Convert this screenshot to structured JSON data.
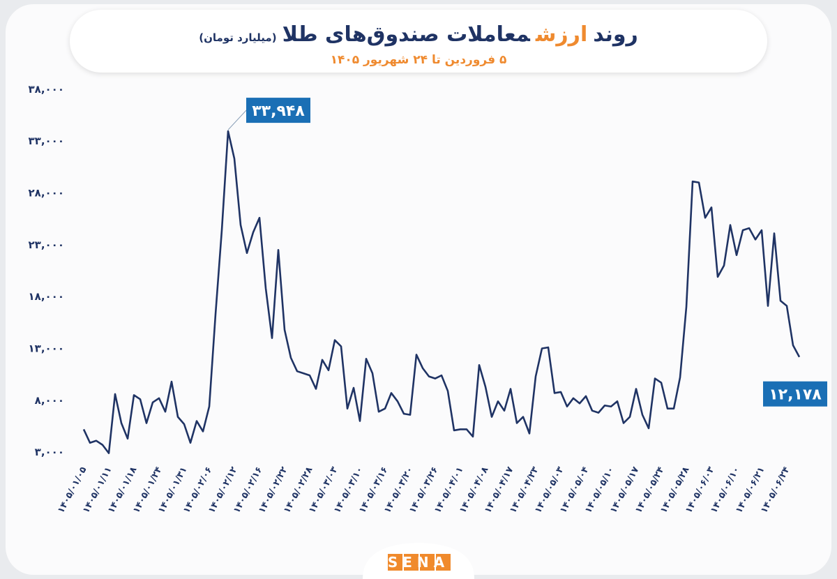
{
  "chart_data": {
    "type": "line",
    "title": [
      "روند",
      "ارزش",
      "معاملات صندوق‌های طلا"
    ],
    "subtitle": "(میلیارد تومان)",
    "date_range": "۵ فروردین تا ۲۴ شهریور ۱۴۰۵",
    "source": "SENA",
    "categories": [
      "۱۴۰۵/۰۱/۰۵",
      null,
      null,
      null,
      "۱۴۰۵/۰۱/۱۱",
      null,
      null,
      null,
      "۱۴۰۵/۰۱/۱۸",
      null,
      null,
      null,
      "۱۴۰۵/۰۱/۲۴",
      null,
      null,
      null,
      "۱۴۰۵/۰۱/۳۱",
      null,
      null,
      null,
      "۱۴۰۵/۰۲/۰۶",
      null,
      null,
      null,
      "۱۴۰۵/۰۲/۱۲",
      null,
      null,
      null,
      "۱۴۰۵/۰۲/۱۶",
      null,
      null,
      null,
      "۱۴۰۵/۰۲/۲۲",
      null,
      null,
      null,
      "۱۴۰۵/۰۲/۲۸",
      null,
      null,
      null,
      "۱۴۰۵/۰۳/۰۳",
      null,
      null,
      null,
      "۱۴۰۵/۰۳/۱۰",
      null,
      null,
      null,
      "۱۴۰۵/۰۳/۱۶",
      null,
      null,
      null,
      "۱۴۰۵/۰۳/۲۰",
      null,
      null,
      null,
      "۱۴۰۵/۰۳/۲۶",
      null,
      null,
      null,
      "۱۴۰۵/۰۴/۰۱",
      null,
      null,
      null,
      "۱۴۰۵/۰۴/۰۸",
      null,
      null,
      null,
      "۱۴۰۵/۰۴/۱۷",
      null,
      null,
      null,
      "۱۴۰۵/۰۴/۲۳",
      null,
      null,
      null,
      "۱۴۰۵/۰۵/۰۳",
      null,
      null,
      null,
      "۱۴۰۵/۰۵/۰۴",
      null,
      null,
      null,
      "۱۴۰۵/۰۵/۱۰",
      null,
      null,
      null,
      "۱۴۰۵/۰۵/۱۷",
      null,
      null,
      null,
      "۱۴۰۵/۰۵/۲۴",
      null,
      null,
      null,
      "۱۴۰۵/۰۵/۲۸",
      null,
      null,
      null,
      "۱۴۰۵/۰۶/۰۳",
      null,
      null,
      null,
      "۱۴۰۵/۰۶/۱۰",
      null,
      null,
      null,
      "۱۴۰۵/۰۶/۲۱",
      null,
      null,
      null,
      "۱۴۰۵/۰۶/۲۴",
      null,
      null
    ],
    "series": [
      {
        "color": "#1f3364",
        "values": [
          5200,
          3900,
          4100,
          3700,
          2900,
          8600,
          5800,
          4300,
          8500,
          8100,
          5800,
          7800,
          8200,
          6900,
          9800,
          6400,
          5700,
          3900,
          6000,
          5000,
          7400,
          16300,
          24400,
          33948,
          31300,
          24900,
          22200,
          24200,
          25600,
          18800,
          14000,
          22500,
          14800,
          12100,
          10800,
          10600,
          10400,
          9100,
          11900,
          10900,
          13800,
          13200,
          7200,
          9200,
          6000,
          12000,
          10600,
          6900,
          7200,
          8700,
          7900,
          6700,
          6600,
          12400,
          11100,
          10300,
          10100,
          10400,
          8900,
          5100,
          5200,
          5200,
          4500,
          11400,
          9300,
          6400,
          7900,
          7000,
          9100,
          5800,
          6400,
          4800,
          10300,
          13000,
          13100,
          8700,
          8800,
          7400,
          8200,
          7700,
          8400,
          7000,
          6800,
          7500,
          7400,
          7900,
          5800,
          6400,
          9100,
          6600,
          5300,
          10100,
          9700,
          7200,
          7200,
          10200,
          17000,
          29100,
          29000,
          25600,
          26600,
          19900,
          21000,
          24900,
          22000,
          24400,
          24600,
          23500,
          24400,
          17100,
          24100,
          17600,
          17100,
          13300,
          12178
        ],
        "value_labels": [
          null,
          null,
          null,
          null,
          null,
          null,
          null,
          null,
          null,
          null,
          null,
          null,
          null,
          null,
          null,
          null,
          null,
          null,
          null,
          null,
          null,
          null,
          null,
          "۳۳,۹۴۸",
          null,
          null,
          null,
          null,
          null,
          null,
          null,
          null,
          null,
          null,
          null,
          null,
          null,
          null,
          null,
          null,
          null,
          null,
          null,
          null,
          null,
          null,
          null,
          null,
          null,
          null,
          null,
          null,
          null,
          null,
          null,
          null,
          null,
          null,
          null,
          null,
          null,
          null,
          null,
          null,
          null,
          null,
          null,
          null,
          null,
          null,
          null,
          null,
          null,
          null,
          null,
          null,
          null,
          null,
          null,
          null,
          null,
          null,
          null,
          null,
          null,
          null,
          null,
          null,
          null,
          null,
          null,
          null,
          null,
          null,
          null,
          null,
          null,
          null,
          null,
          null,
          null,
          null,
          null,
          null,
          null,
          null,
          null,
          null,
          null,
          null,
          null,
          null,
          null,
          null,
          "۱۲,۱۷۸"
        ],
        "label_color": "#1a6fb5"
      }
    ],
    "ylim": [
      2000,
      39000
    ],
    "yticks": [
      {
        "value": 3000,
        "label": "۳,۰۰۰"
      },
      {
        "value": 8000,
        "label": "۸,۰۰۰"
      },
      {
        "value": 13000,
        "label": "۱۳,۰۰۰"
      },
      {
        "value": 18000,
        "label": "۱۸,۰۰۰"
      },
      {
        "value": 23000,
        "label": "۲۳,۰۰۰"
      },
      {
        "value": 28000,
        "label": "۲۸,۰۰۰"
      },
      {
        "value": 33000,
        "label": "۳۳,۰۰۰"
      },
      {
        "value": 38000,
        "label": "۳۸,۰۰۰"
      }
    ],
    "grid": false
  }
}
